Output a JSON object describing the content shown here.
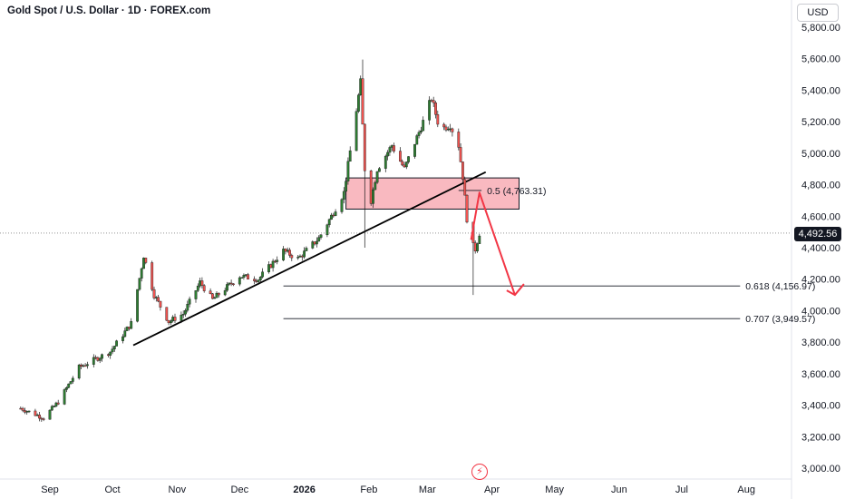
{
  "header": {
    "title": "Gold Spot / U.S. Dollar · 1D · FOREX.com",
    "currency": "USD"
  },
  "last_price": "4,492.56",
  "colors": {
    "up": "#26a69a",
    "down": "#ef5350",
    "up_body": "#2e7d32",
    "zone_fill": "#f7a1ab",
    "zone_stroke": "#131722",
    "arrow": "#f23645",
    "trend": "#000000",
    "fib": "#131722"
  },
  "icons": {
    "bolt": "lightning-icon"
  },
  "bolt_glyph": "⚡",
  "chart_data": {
    "type": "candlestick",
    "title": "Gold Spot / U.S. Dollar · 1D · FOREX.com",
    "y_ticks": [
      "5,800.00",
      "5,600.00",
      "5,400.00",
      "5,200.00",
      "5,000.00",
      "4,800.00",
      "4,600.00",
      "4,400.00",
      "4,200.00",
      "4,000.00",
      "3,800.00",
      "3,600.00",
      "3,400.00",
      "3,200.00",
      "3,000.00"
    ],
    "y_tick_values": [
      5800,
      5600,
      5400,
      5200,
      5000,
      4800,
      4600,
      4400,
      4200,
      4000,
      3800,
      3600,
      3400,
      3200,
      3000
    ],
    "ylim": [
      2940,
      5940
    ],
    "x_ticks": [
      "Sep",
      "Oct",
      "Nov",
      "Dec",
      "2026",
      "Feb",
      "Mar",
      "Apr",
      "May",
      "Jun",
      "Jul",
      "Aug"
    ],
    "x_tick_dates": [
      "2025-09-01",
      "2025-10-01",
      "2025-11-01",
      "2025-12-01",
      "2026-01-01",
      "2026-02-01",
      "2026-03-01",
      "2026-04-01",
      "2026-05-01",
      "2026-06-01",
      "2026-07-01",
      "2026-08-01"
    ],
    "bold_ticks": [
      "2026"
    ],
    "waypoints": [
      [
        "2025-08-18",
        3380
      ],
      [
        "2025-08-29",
        3320
      ],
      [
        "2025-09-05",
        3420
      ],
      [
        "2025-09-15",
        3640
      ],
      [
        "2025-09-30",
        3740
      ],
      [
        "2025-10-10",
        3920
      ],
      [
        "2025-10-16",
        4350
      ],
      [
        "2025-10-21",
        4100
      ],
      [
        "2025-10-28",
        3930
      ],
      [
        "2025-11-04",
        3980
      ],
      [
        "2025-11-12",
        4180
      ],
      [
        "2025-11-18",
        4070
      ],
      [
        "2025-12-01",
        4220
      ],
      [
        "2025-12-10",
        4200
      ],
      [
        "2025-12-22",
        4380
      ],
      [
        "2025-12-29",
        4330
      ],
      [
        "2026-01-08",
        4460
      ],
      [
        "2026-01-14",
        4600
      ],
      [
        "2026-01-20",
        4750
      ],
      [
        "2026-01-28",
        5450
      ],
      [
        "2026-01-30",
        4900
      ],
      [
        "2026-02-02",
        4700
      ],
      [
        "2026-02-05",
        4900
      ],
      [
        "2026-02-12",
        5050
      ],
      [
        "2026-02-18",
        4900
      ],
      [
        "2026-02-27",
        5200
      ],
      [
        "2026-03-03",
        5350
      ],
      [
        "2026-03-07",
        5150
      ],
      [
        "2026-03-12",
        5180
      ],
      [
        "2026-03-16",
        5050
      ],
      [
        "2026-03-18",
        4850
      ],
      [
        "2026-03-21",
        4450
      ],
      [
        "2026-03-24",
        4390
      ],
      [
        "2026-03-26",
        4492
      ]
    ],
    "spikes": [
      {
        "date": "2026-01-29",
        "high": 5595
      },
      {
        "date": "2026-01-30",
        "low": 4400
      },
      {
        "date": "2026-03-23",
        "low": 4100
      }
    ],
    "supply_zone": {
      "from": "2026-01-21",
      "to": "2026-04-14",
      "top": 4843,
      "bottom": 4645
    },
    "trendline": {
      "from": [
        "2025-10-11",
        3780
      ],
      "to": [
        "2026-03-29",
        4880
      ]
    },
    "fib_levels": [
      {
        "label": "0.5 (4,763.31)",
        "value": 4763.31,
        "from": "2026-03-16",
        "to": "2026-03-27"
      },
      {
        "label": "0.618 (4,156.97)",
        "value": 4156.97,
        "from": "2025-12-22",
        "to": "2026-07-29"
      },
      {
        "label": "0.707 (3,949.57)",
        "value": 3949.57,
        "from": "2025-12-22",
        "to": "2026-07-29"
      }
    ],
    "projection_arrow": [
      [
        "2026-03-22",
        4450
      ],
      [
        "2026-03-26",
        4750
      ],
      [
        "2026-04-12",
        4100
      ]
    ],
    "last_price_value": 4492.56
  }
}
